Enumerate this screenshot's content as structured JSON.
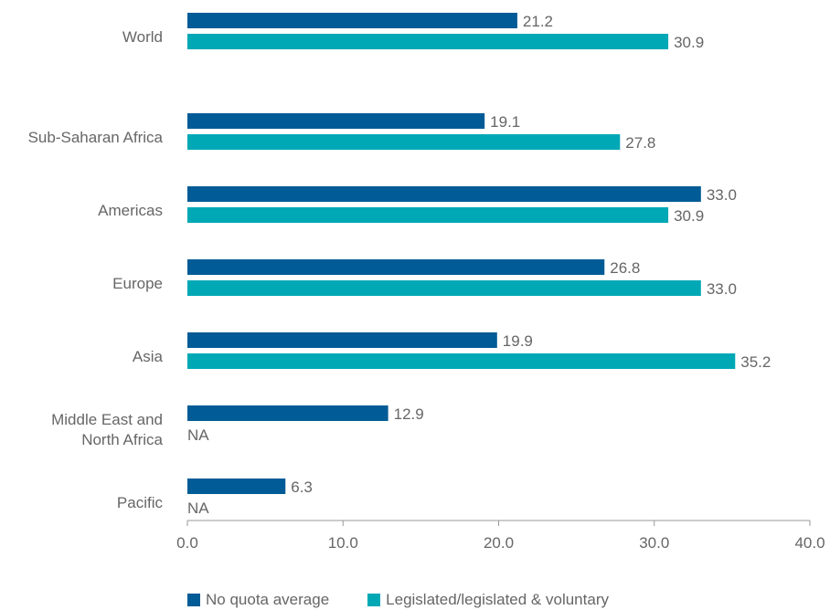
{
  "chart_data": {
    "type": "bar",
    "orientation": "horizontal",
    "categories": [
      "World",
      "Sub-Saharan Africa",
      "Americas",
      "Europe",
      "Asia",
      "Middle East and North Africa",
      "Pacific"
    ],
    "category_lines": [
      [
        "World"
      ],
      [
        "Sub-Saharan Africa"
      ],
      [
        "Americas"
      ],
      [
        "Europe"
      ],
      [
        "Asia"
      ],
      [
        "Middle East and",
        "North Africa"
      ],
      [
        "Pacific"
      ]
    ],
    "series": [
      {
        "name": "No quota average",
        "color": "#005B96",
        "values": [
          21.2,
          19.1,
          33.0,
          26.8,
          19.9,
          12.9,
          6.3
        ],
        "labels": [
          "21.2",
          "19.1",
          "33.0",
          "26.8",
          "19.9",
          "12.9",
          "6.3"
        ]
      },
      {
        "name": "Legislated/legislated & voluntary",
        "color": "#00A8B5",
        "values": [
          30.9,
          27.8,
          30.9,
          33.0,
          35.2,
          null,
          null
        ],
        "labels": [
          "30.9",
          "27.8",
          "30.9",
          "33.0",
          "35.2",
          "NA",
          "NA"
        ]
      }
    ],
    "xlim": [
      0,
      40
    ],
    "xticks": [
      0,
      10,
      20,
      30,
      40
    ],
    "xtick_labels": [
      "0.0",
      "10.0",
      "20.0",
      "30.0",
      "40.0"
    ],
    "legend_position": "bottom"
  }
}
